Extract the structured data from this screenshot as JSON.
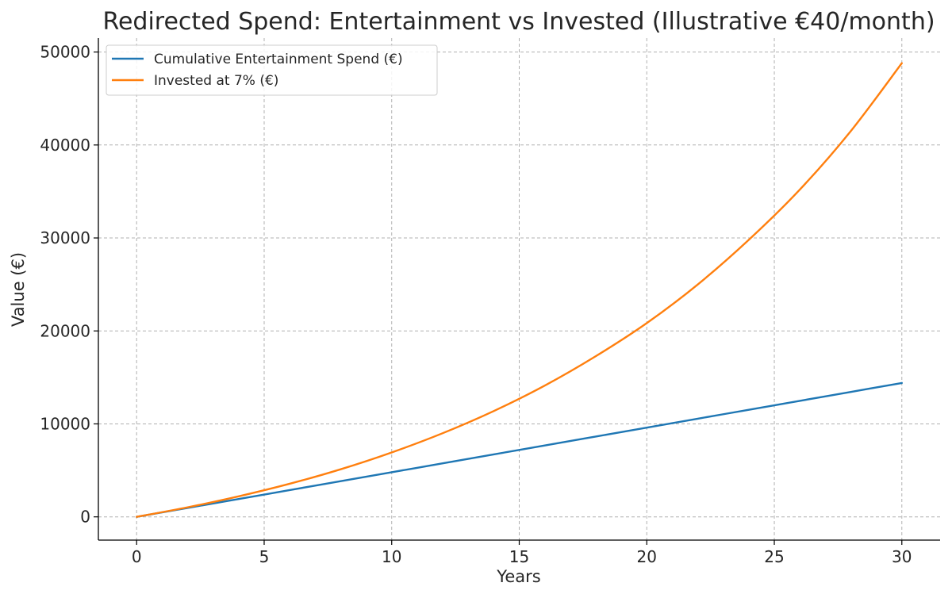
{
  "chart_data": {
    "type": "line",
    "title": "Redirected Spend: Entertainment vs Invested (Illustrative €40/month)",
    "xlabel": "Years",
    "ylabel": "Value (€)",
    "xlim": [
      -1.5,
      31.5
    ],
    "ylim": [
      -2500,
      51500
    ],
    "xticks": [
      0,
      5,
      10,
      15,
      20,
      25,
      30
    ],
    "xtick_labels": [
      "0",
      "5",
      "10",
      "15",
      "20",
      "25",
      "30"
    ],
    "yticks": [
      0,
      10000,
      20000,
      30000,
      40000,
      50000
    ],
    "ytick_labels": [
      "0",
      "10000",
      "20000",
      "30000",
      "40000",
      "50000"
    ],
    "grid": true,
    "legend_position": "top-left",
    "x": [
      0,
      2,
      4,
      6,
      8,
      10,
      12,
      14,
      16,
      18,
      20,
      22,
      24,
      26,
      28,
      30
    ],
    "series": [
      {
        "name": "Cumulative Entertainment Spend (€)",
        "color": "#1f77b4",
        "values": [
          0,
          960,
          1920,
          2880,
          3840,
          4800,
          5760,
          6720,
          7680,
          8640,
          9600,
          10560,
          11520,
          12480,
          13440,
          14400
        ]
      },
      {
        "name": "Invested at 7% (€)",
        "color": "#ff7f0e",
        "values": [
          0,
          1030,
          2210,
          3560,
          5120,
          6930,
          9000,
          11380,
          14120,
          17280,
          20840,
          25000,
          29800,
          35200,
          41500,
          48800
        ]
      }
    ]
  }
}
